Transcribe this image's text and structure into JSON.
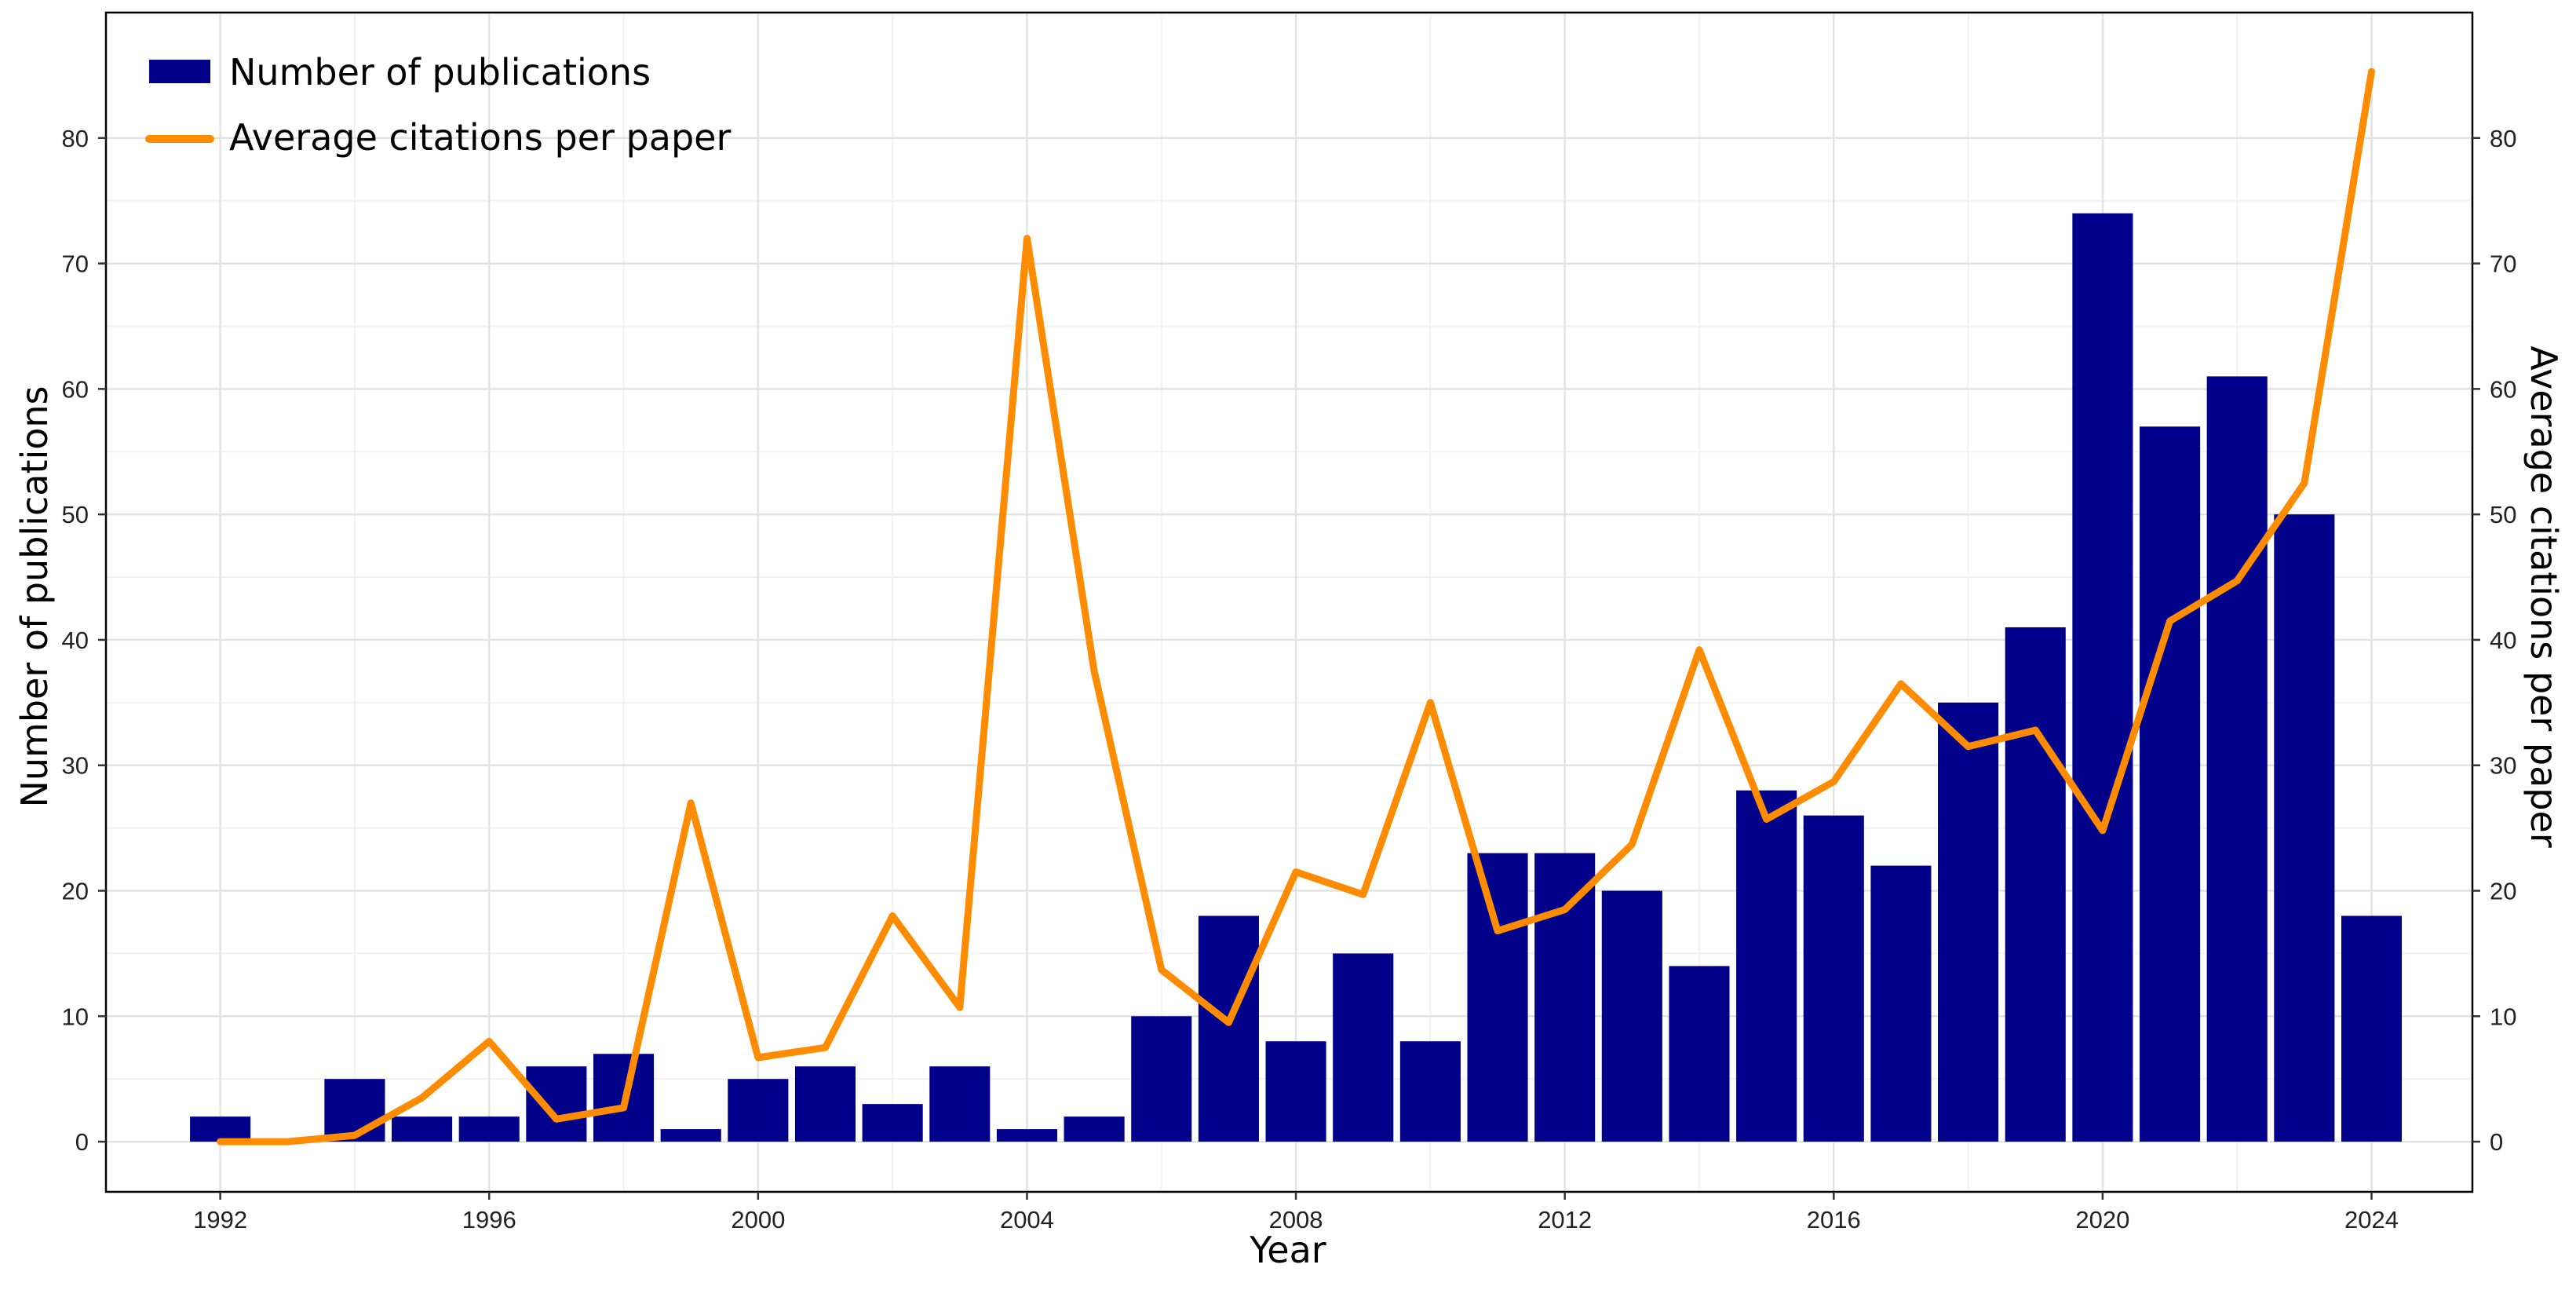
{
  "chart_data": {
    "type": "bar+line",
    "xlabel": "Year",
    "ylabel_left": "Number of publications",
    "ylabel_right": "Average citations per paper",
    "x_ticks": [
      1992,
      1996,
      2000,
      2004,
      2008,
      2012,
      2016,
      2020,
      2024
    ],
    "y_ticks": [
      0,
      10,
      20,
      30,
      40,
      50,
      60,
      70,
      80
    ],
    "xlim": [
      1990.3,
      2025.5
    ],
    "ylim": [
      -4,
      90
    ],
    "grid": true,
    "legend_position": "top-left",
    "years": [
      1992,
      1993,
      1994,
      1995,
      1996,
      1997,
      1998,
      1999,
      2000,
      2001,
      2002,
      2003,
      2004,
      2005,
      2006,
      2007,
      2008,
      2009,
      2010,
      2011,
      2012,
      2013,
      2014,
      2015,
      2016,
      2017,
      2018,
      2019,
      2020,
      2021,
      2022,
      2023,
      2024
    ],
    "series": [
      {
        "name": "Number of publications",
        "kind": "bar",
        "axis": "left",
        "color": "#00008B",
        "values": [
          2,
          0,
          5,
          2,
          2,
          6,
          7,
          1,
          5,
          6,
          3,
          6,
          1,
          2,
          10,
          18,
          8,
          15,
          8,
          23,
          23,
          20,
          14,
          28,
          26,
          22,
          35,
          41,
          74,
          57,
          61,
          50,
          18
        ]
      },
      {
        "name": "Average citations per paper",
        "kind": "line",
        "axis": "right",
        "color": "#FF8C00",
        "values": [
          0,
          0,
          0.5,
          3.5,
          8,
          1.8,
          2.7,
          27,
          6.7,
          7.5,
          18,
          10.7,
          72,
          37.5,
          13.7,
          9.5,
          21.5,
          19.7,
          35,
          16.8,
          18.5,
          23.7,
          39.2,
          25.7,
          28.7,
          36.5,
          31.5,
          32.8,
          24.8,
          41.5,
          44.7,
          52.5,
          85.3
        ]
      }
    ]
  }
}
